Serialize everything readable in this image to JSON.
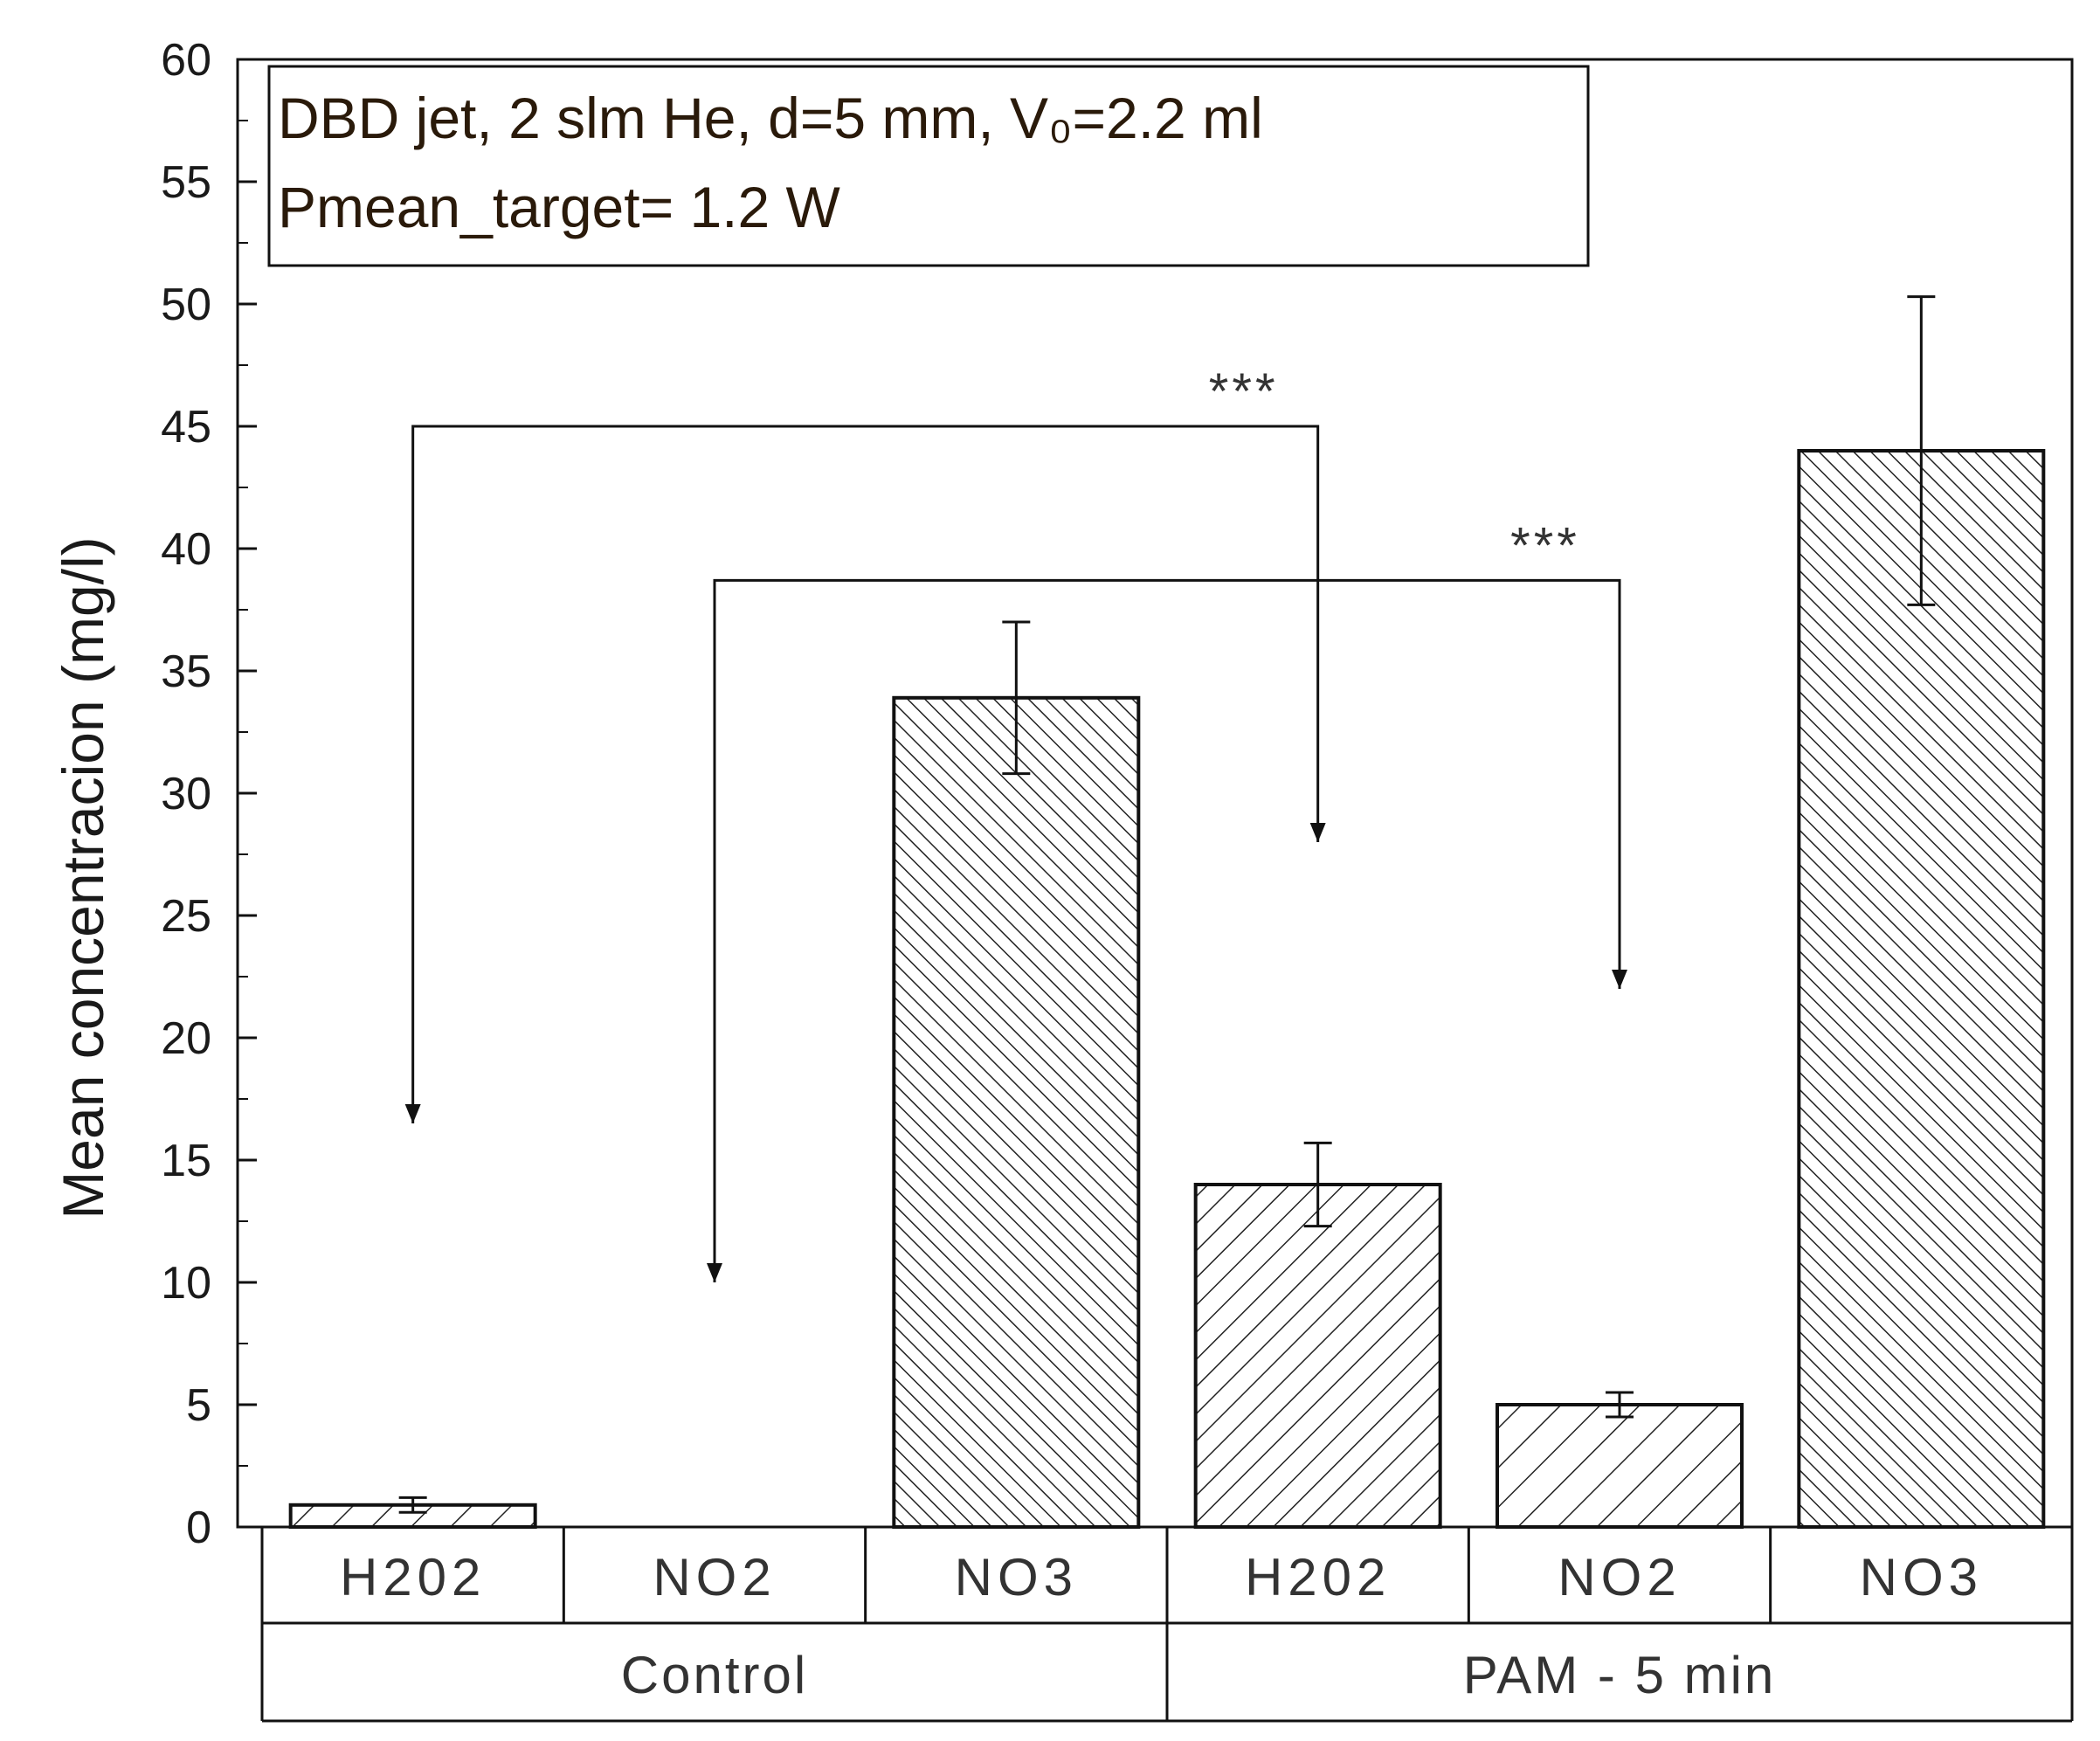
{
  "chart_data": {
    "type": "bar",
    "ylabel": "Mean concentracion (mg/l)",
    "ylim": [
      0,
      60
    ],
    "yticks": [
      0,
      5,
      10,
      15,
      20,
      25,
      30,
      35,
      40,
      45,
      50,
      55,
      60
    ],
    "categories": [
      "H202",
      "NO2",
      "NO3",
      "H202",
      "NO2",
      "NO3"
    ],
    "groups": [
      {
        "label": "Control",
        "span": [
          0,
          2
        ]
      },
      {
        "label": "PAM - 5 min",
        "span": [
          3,
          5
        ]
      }
    ],
    "values": [
      0.9,
      0,
      33.9,
      14.0,
      5.0,
      44.0
    ],
    "errors": [
      0.3,
      0,
      3.1,
      1.7,
      0.5,
      6.3
    ],
    "hatch_density": [
      "sparse",
      "none",
      "dense",
      "medium",
      "sparse",
      "dense"
    ],
    "annotation": {
      "line1": "DBD jet, 2 slm He, d=5 mm, V₀=2.2 ml",
      "line2": "Pmean_target= 1.2 W"
    },
    "significance": [
      {
        "label": "***",
        "from": 0,
        "to": 3,
        "left_end": 16.5,
        "right_end": 28,
        "bracket": 45
      },
      {
        "label": "***",
        "from": 1,
        "to": 4,
        "left_end": 10,
        "right_end": 22,
        "bracket": 38.7
      }
    ],
    "colors": {
      "bar_edge": "#111111",
      "hatch": "#222222",
      "annotation_text": "#2a1a0a"
    }
  }
}
